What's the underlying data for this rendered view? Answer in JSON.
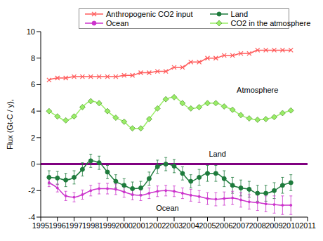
{
  "chart_data": {
    "type": "line",
    "y_label": "Flux (Gt-C / y),",
    "x": [
      1995.5,
      1996,
      1996.5,
      1997,
      1997.5,
      1998,
      1998.5,
      1999,
      1999.5,
      2000,
      2000.5,
      2001,
      2001.5,
      2002,
      2002.5,
      2003,
      2003.5,
      2004,
      2004.5,
      2005,
      2005.5,
      2006,
      2006.5,
      2007,
      2007.5,
      2008,
      2008.5,
      2009,
      2009.5,
      2010
    ],
    "xlim": [
      1995,
      2011
    ],
    "xticks": [
      1995,
      1996,
      1997,
      1998,
      1999,
      2000,
      2001,
      2002,
      2003,
      2004,
      2005,
      2006,
      2007,
      2008,
      2009,
      2010,
      2011
    ],
    "ylim": [
      -4,
      10
    ],
    "yticks": [
      -4,
      -2,
      0,
      2,
      4,
      6,
      8,
      10
    ],
    "legend": "top",
    "series": [
      {
        "name": "Anthropogenic CO2 input",
        "color": "#ff5a5a",
        "marker": "x",
        "line_style": "solid",
        "values": [
          6.35,
          6.5,
          6.5,
          6.6,
          6.6,
          6.6,
          6.6,
          6.6,
          6.6,
          6.7,
          6.7,
          6.9,
          6.9,
          7.0,
          7.0,
          7.3,
          7.3,
          7.7,
          7.7,
          8.0,
          8.0,
          8.2,
          8.2,
          8.35,
          8.35,
          8.6,
          8.6,
          8.6,
          8.6,
          8.6
        ]
      },
      {
        "name": "Land",
        "color": "#1e7b3c",
        "marker": "circle",
        "line_style": "solid",
        "values": [
          -1.0,
          -1.05,
          -1.2,
          -1.0,
          -0.4,
          0.25,
          0.1,
          -0.6,
          -1.3,
          -1.6,
          -1.85,
          -1.8,
          -1.1,
          -0.2,
          0.0,
          -0.15,
          -0.7,
          -1.3,
          -1.0,
          -0.7,
          -0.7,
          -1.1,
          -1.6,
          -1.8,
          -1.9,
          -2.2,
          -2.2,
          -2.0,
          -1.6,
          -1.4
        ],
        "errors": [
          0.5,
          0.5,
          0.5,
          0.5,
          0.5,
          0.5,
          0.5,
          0.5,
          0.5,
          0.5,
          0.5,
          0.5,
          0.5,
          0.5,
          0.5,
          0.5,
          0.5,
          0.5,
          0.6,
          0.6,
          0.6,
          0.6,
          0.6,
          0.6,
          0.6,
          0.6,
          0.6,
          0.6,
          0.6,
          0.6
        ]
      },
      {
        "name": "Ocean",
        "color": "#cc33cc",
        "marker": "circle",
        "line_style": "solid",
        "values": [
          -1.4,
          -1.8,
          -2.4,
          -2.5,
          -2.3,
          -2.0,
          -1.85,
          -1.85,
          -1.9,
          -2.1,
          -2.3,
          -2.35,
          -2.2,
          -2.05,
          -2.0,
          -2.05,
          -2.2,
          -2.35,
          -2.45,
          -2.6,
          -2.65,
          -2.6,
          -2.55,
          -2.7,
          -2.85,
          -2.9,
          -3.0,
          -3.05,
          -3.1,
          -3.1
        ],
        "errors": [
          0.3,
          0.3,
          0.35,
          0.35,
          0.35,
          0.4,
          0.4,
          0.4,
          0.4,
          0.4,
          0.4,
          0.4,
          0.4,
          0.4,
          0.4,
          0.4,
          0.4,
          0.45,
          0.45,
          0.45,
          0.5,
          0.5,
          0.5,
          0.55,
          0.55,
          0.6,
          0.6,
          0.65,
          0.7,
          0.7
        ]
      },
      {
        "name": "CO2 in the atmosphere",
        "color": "#99ee66",
        "marker": "diamond",
        "line_style": "solid",
        "values": [
          4.0,
          3.6,
          3.3,
          3.6,
          4.3,
          4.75,
          4.6,
          4.0,
          3.5,
          3.2,
          2.7,
          2.7,
          3.4,
          4.2,
          4.9,
          5.05,
          4.6,
          4.2,
          4.3,
          4.6,
          4.6,
          4.35,
          4.1,
          3.7,
          3.45,
          3.35,
          3.4,
          3.55,
          3.85,
          4.05
        ]
      }
    ],
    "zero_line": {
      "value": 0,
      "color": "#800080"
    },
    "annotations": [
      {
        "text": "Atmosphere",
        "x": 2008,
        "y": 5.6
      },
      {
        "text": "Land",
        "x": 2005.6,
        "y": 0.75
      },
      {
        "text": "Ocean",
        "x": 2002.6,
        "y": -3.3
      }
    ]
  }
}
